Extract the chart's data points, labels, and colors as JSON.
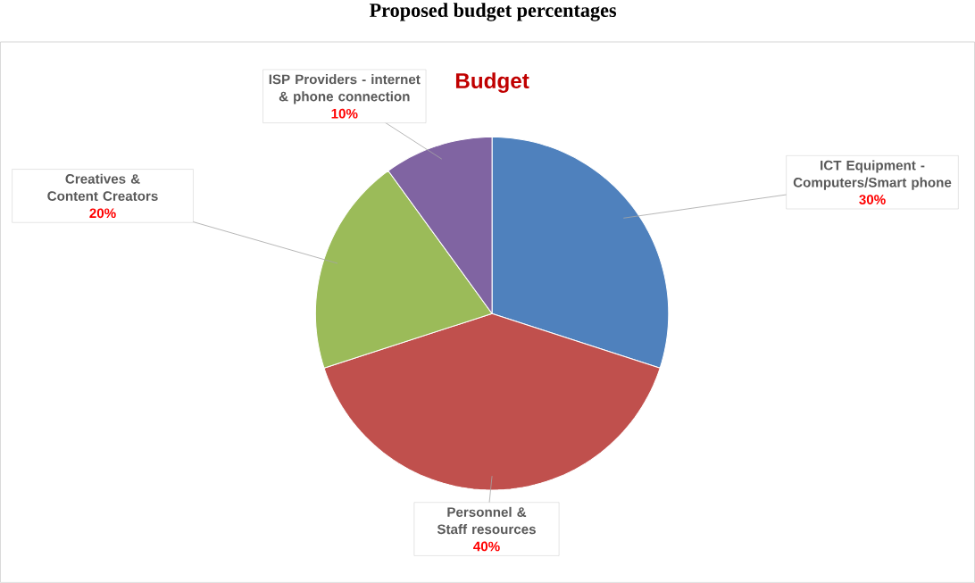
{
  "chart_data": {
    "type": "pie",
    "title": "Proposed budget percentages",
    "subtitle": "Budget",
    "categories": [
      "ICT Equipment - Computers/Smart phone",
      "Personnel & Staff resources",
      "Creatives & Content Creators",
      "ISP Providers - internet & phone connection"
    ],
    "values": [
      30,
      40,
      20,
      10
    ],
    "colors": [
      "#4f81bd",
      "#c0504d",
      "#9bbb59",
      "#8064a2"
    ],
    "value_labels": [
      "30%",
      "40%",
      "20%",
      "10%"
    ]
  }
}
